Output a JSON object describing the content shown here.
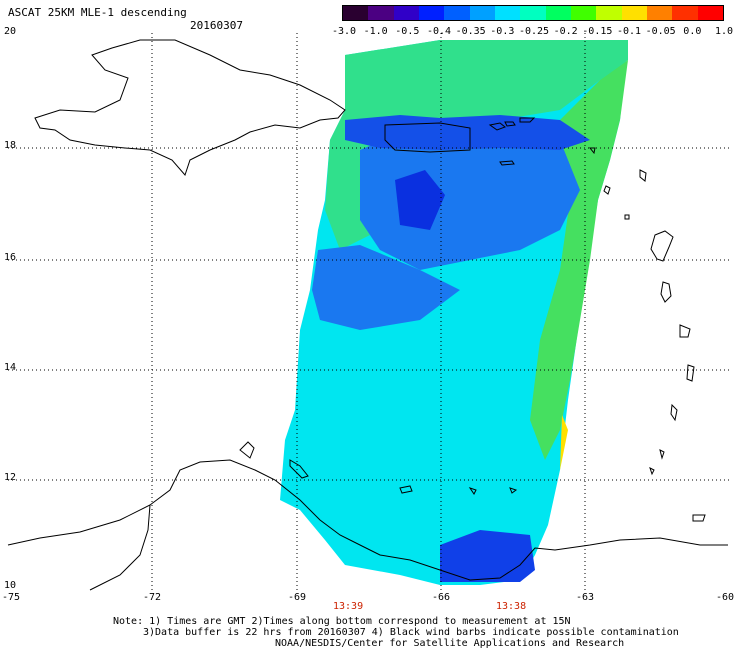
{
  "title": "ASCAT 25KM MLE-1 descending",
  "date": "20160307",
  "colorbar": {
    "labels": [
      "-3.0",
      "-1.0",
      "-0.5",
      "-0.4",
      "-0.35",
      "-0.3",
      "-0.25",
      "-0.2",
      "-0.15",
      "-0.1",
      "-0.05",
      "0.0",
      "1.0"
    ],
    "colors": [
      "#2a0030",
      "#4b0082",
      "#3000c8",
      "#0020ff",
      "#0060ff",
      "#00a0ff",
      "#00e0ff",
      "#00ffc0",
      "#00ff60",
      "#40ff00",
      "#c0ff00",
      "#ffe000",
      "#ff8000",
      "#ff3000",
      "#ff0000"
    ]
  },
  "axes": {
    "lon_ticks": [
      "-75",
      "-72",
      "-69",
      "-66",
      "-63",
      "-60"
    ],
    "lat_ticks": [
      "20",
      "18",
      "16",
      "14",
      "12",
      "10"
    ]
  },
  "times": [
    "13:39",
    "13:38"
  ],
  "notes": [
    "Note: 1) Times are GMT 2)Times along bottom correspond to measurement at 15N",
    "3)Data buffer is 22 hrs from 20160307 4) Black wind barbs indicate possible contamination",
    "NOAA/NESDIS/Center for Satellite Applications and Research"
  ]
}
